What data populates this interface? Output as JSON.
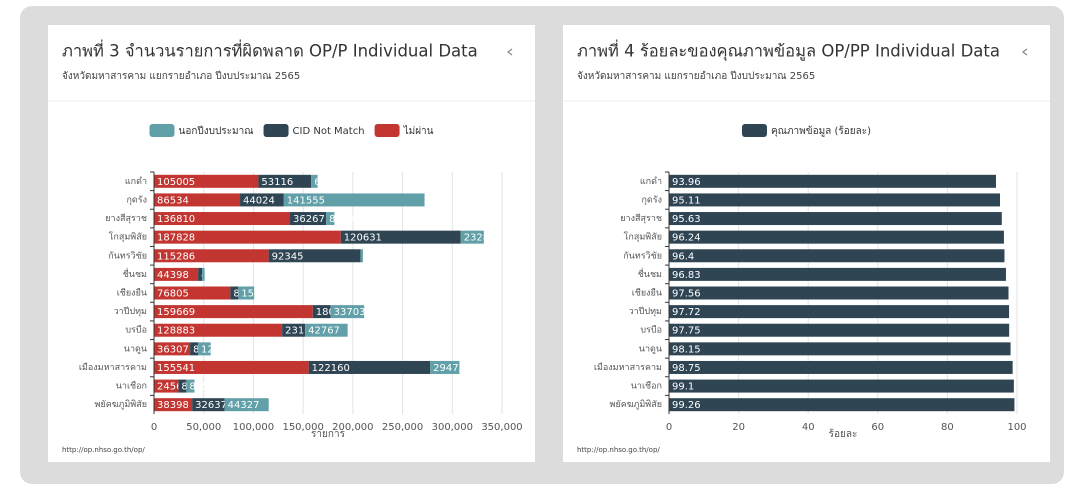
{
  "chart_data": [
    {
      "type": "bar",
      "horizontal": true,
      "stacked": true,
      "title": "ภาพที่ 3 จำนวนรายการที่ผิดพลาด OP/P Individual Data",
      "subtitle": "จังหวัดมหาสารคาม แยกรายอำเภอ ปีงบประมาณ 2565",
      "source": "http://op.nhso.go.th/op/",
      "xlabel": "รายการ",
      "categories": [
        "แกดำ",
        "กุดรัง",
        "ยางสีสุราช",
        "โกสุมพิสัย",
        "กันทรวิชัย",
        "ชื่นชม",
        "เชียงยืน",
        "วาปีปทุม",
        "บรบือ",
        "นาดูน",
        "เมืองมหาสารคาม",
        "นาเชือก",
        "พยัคฆภูมิพิสัย"
      ],
      "legend_order": [
        2,
        1,
        0
      ],
      "series": [
        {
          "name": "ไม่ผ่าน",
          "color": "#c23531",
          "values": [
            105005,
            86534,
            136810,
            187828,
            115286,
            44398,
            76805,
            159669,
            128883,
            36307,
            155541,
            24560,
            38398
          ]
        },
        {
          "name": "CID Not Match",
          "color": "#2f4554",
          "values": [
            53116,
            44024,
            36267,
            120631,
            92345,
            4000,
            8000,
            18000,
            23100,
            8000,
            122160,
            8000,
            32637
          ]
        },
        {
          "name": "นอกปีงบประมาณ",
          "color": "#61a0a8",
          "values": [
            6433,
            141555,
            8340,
            23281,
            2483,
            2515,
            15932,
            33703,
            42767,
            12750,
            29473,
            8150,
            44327
          ]
        }
      ],
      "xlim": [
        0,
        350000
      ],
      "xticks": [
        0,
        {
          "value": 50000,
          "label": "50,000"
        },
        {
          "value": 100000,
          "label": "100,000"
        },
        {
          "value": 150000,
          "label": "150,000"
        },
        {
          "value": 200000,
          "label": "200,000"
        },
        {
          "value": 250000,
          "label": "250,000"
        },
        {
          "value": 300000,
          "label": "300,000"
        },
        {
          "value": 350000,
          "label": "350,000"
        }
      ],
      "grid": true
    },
    {
      "type": "bar",
      "horizontal": true,
      "stacked": false,
      "title": "ภาพที่ 4 ร้อยละของคุณภาพข้อมูล OP/PP Individual Data",
      "subtitle": "จังหวัดมหาสารคาม แยกรายอำเภอ ปีงบประมาณ 2565",
      "source": "http://op.nhso.go.th/op/",
      "xlabel": "ร้อยละ",
      "categories": [
        "แกดำ",
        "กุดรัง",
        "ยางสีสุราช",
        "โกสุมพิสัย",
        "กันทรวิชัย",
        "ชื่นชม",
        "เชียงยืน",
        "วาปีปทุม",
        "บรบือ",
        "นาดูน",
        "เมืองมหาสารคาม",
        "นาเชือก",
        "พยัคฆภูมิพิสัย"
      ],
      "legend_order": [
        0
      ],
      "series": [
        {
          "name": "คุณภาพข้อมูล (ร้อยละ)",
          "color": "#2f4554",
          "values": [
            93.96,
            95.11,
            95.63,
            96.24,
            96.4,
            96.83,
            97.56,
            97.72,
            97.75,
            98.15,
            98.75,
            99.1,
            99.26
          ]
        }
      ],
      "xlim": [
        0,
        100
      ],
      "xticks": [
        0,
        20,
        40,
        60,
        80,
        100
      ],
      "grid": true
    }
  ]
}
